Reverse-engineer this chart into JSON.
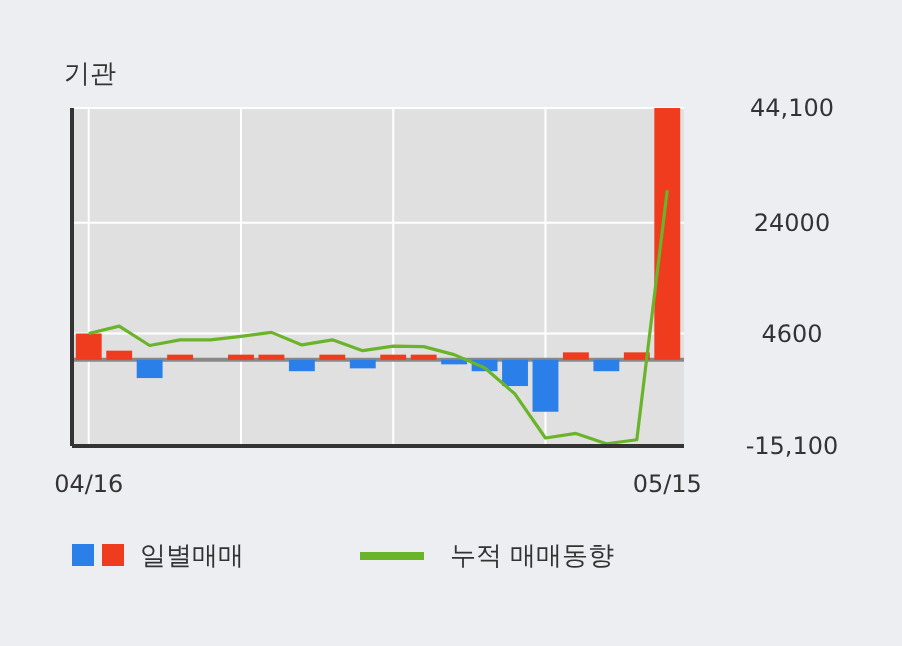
{
  "chart_data": {
    "type": "bar",
    "title": "기관",
    "categories": [
      "04/16",
      null,
      null,
      null,
      null,
      null,
      null,
      null,
      null,
      null,
      null,
      null,
      null,
      null,
      null,
      null,
      null,
      null,
      null,
      "05/15"
    ],
    "series": [
      {
        "name": "일별매매",
        "colors": [
          "#f03c1e",
          "#f03c1e",
          "#2a80e8",
          "#f03c1e",
          "#f03c1e",
          "#f03c1e",
          "#f03c1e",
          "#2a80e8",
          "#f03c1e",
          "#2a80e8",
          "#f03c1e",
          "#f03c1e",
          "#2a80e8",
          "#2a80e8",
          "#2a80e8",
          "#2a80e8",
          "#f03c1e",
          "#2a80e8",
          "#f03c1e",
          "#f03c1e"
        ],
        "values": [
          4600,
          1600,
          -3200,
          900,
          0,
          900,
          900,
          -2000,
          900,
          -1500,
          900,
          900,
          -800,
          -2000,
          -4600,
          -9100,
          1300,
          -2000,
          1300,
          44100
        ]
      },
      {
        "name": "누적 매매동향",
        "type": "line",
        "color": "#6ab42a",
        "values": [
          4600,
          5900,
          2500,
          3500,
          3500,
          4100,
          4800,
          2600,
          3500,
          1600,
          2400,
          2300,
          900,
          -1400,
          -6000,
          -13700,
          -12900,
          -14700,
          -14000,
          29700
        ]
      }
    ],
    "ylim": [
      -15100,
      44100
    ],
    "yticks": [
      {
        "value": -15100,
        "label": "-15,100"
      },
      4600,
      24000,
      {
        "value": 44100,
        "label": "44,100"
      }
    ],
    "grid": true,
    "legend": "bottom"
  }
}
